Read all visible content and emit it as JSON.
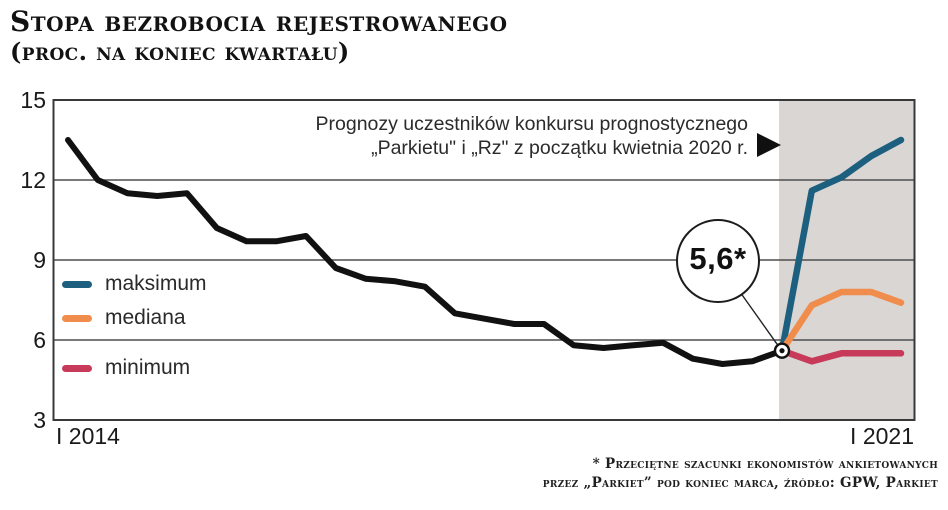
{
  "title": "Stopa bezrobocia rejestrowanego",
  "subtitle": "(proc. na koniec kwartału)",
  "annotation": {
    "line1": "Prognozy uczestników konkursu prognostycznego",
    "line2": "„Parkietu\" i „Rz\" z początku kwietnia 2020 r.",
    "callout_value": "5,6*"
  },
  "legend": [
    {
      "name": "maksimum",
      "label": "maksimum",
      "color": "#1d5f7e"
    },
    {
      "name": "mediana",
      "label": "mediana",
      "color": "#f08d4d"
    },
    {
      "name": "minimum",
      "label": "minimum",
      "color": "#c83a5a"
    }
  ],
  "footnote": {
    "line1": "* Przeciętne szacunki ekonomistów ankietowanych",
    "line2": "przez „Parkiet” pod koniec marca, źródło: GPW, Parkiet"
  },
  "chart_data": {
    "type": "line",
    "x_unit": "quarter",
    "x_tick_labels": [
      "I 2014",
      "I 2021"
    ],
    "y_ticks": [
      3,
      6,
      9,
      12,
      15
    ],
    "ylim": [
      3,
      15
    ],
    "grid": true,
    "legend_position": "inside-left",
    "forecast_region_start": "I 2020",
    "forecast_region_color": "#d9d6d4",
    "series": [
      {
        "name": "actual",
        "label": "",
        "color": "#111111",
        "start": "I 2014",
        "start_index": 0,
        "values": [
          13.5,
          12.0,
          11.5,
          11.4,
          11.5,
          10.2,
          9.7,
          9.7,
          9.9,
          8.7,
          8.3,
          8.2,
          8.0,
          7.0,
          6.8,
          6.6,
          6.6,
          5.8,
          5.7,
          5.8,
          5.9,
          5.3,
          5.1,
          5.2,
          5.6
        ]
      },
      {
        "name": "maksimum",
        "label": "maksimum",
        "color": "#1d5f7e",
        "start": "I 2020",
        "start_index": 24,
        "values": [
          5.6,
          11.6,
          12.1,
          12.9,
          13.5
        ]
      },
      {
        "name": "mediana",
        "label": "mediana",
        "color": "#f08d4d",
        "start": "I 2020",
        "start_index": 24,
        "values": [
          5.6,
          7.3,
          7.8,
          7.8,
          7.4
        ]
      },
      {
        "name": "minimum",
        "label": "minimum",
        "color": "#c83a5a",
        "start": "I 2020",
        "start_index": 24,
        "values": [
          5.6,
          5.2,
          5.5,
          5.5,
          5.5
        ]
      }
    ]
  }
}
